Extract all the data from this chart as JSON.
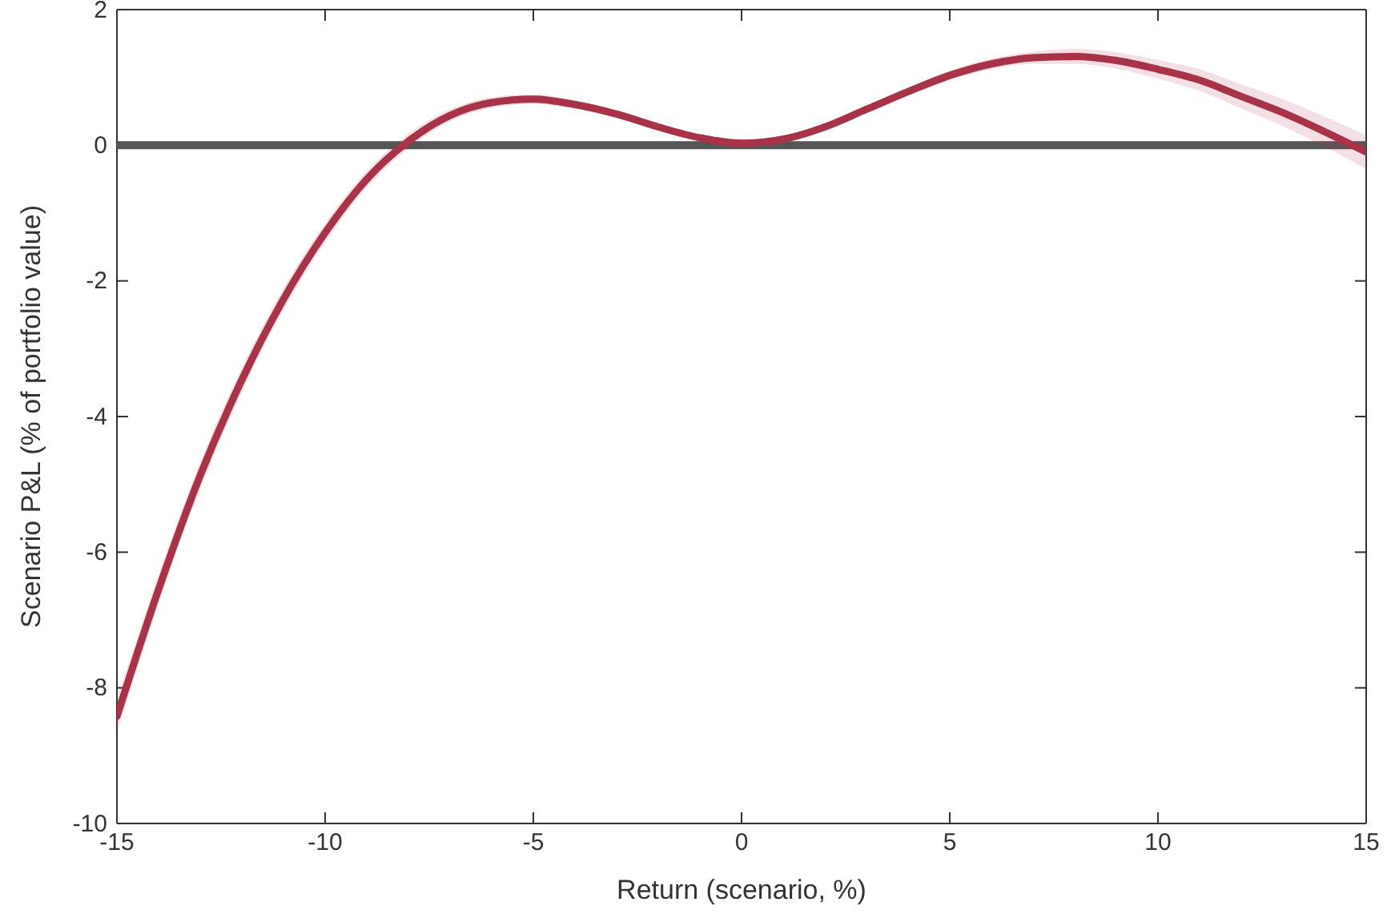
{
  "chart_data": {
    "type": "line",
    "xlabel": "Return (scenario, %)",
    "ylabel": "Scenario P&L (% of portfolio value)",
    "x": [
      -15,
      -14,
      -13,
      -12,
      -11,
      -10,
      -9,
      -8,
      -7,
      -6,
      -5,
      -4,
      -3,
      -2,
      -1,
      0,
      1,
      2,
      3,
      4,
      5,
      6,
      7,
      8,
      9,
      10,
      11,
      12,
      13,
      14,
      15
    ],
    "series": [
      {
        "color": "#a83248",
        "values": [
          -8.42,
          -6.55,
          -4.87,
          -3.46,
          -2.27,
          -1.29,
          -0.5,
          0.06,
          0.44,
          0.63,
          0.68,
          0.6,
          0.46,
          0.27,
          0.11,
          0.03,
          0.09,
          0.27,
          0.53,
          0.79,
          1.03,
          1.2,
          1.29,
          1.31,
          1.25,
          1.12,
          0.96,
          0.72,
          0.48,
          0.2,
          -0.1
        ],
        "lower": [
          -8.67,
          -6.77,
          -5.07,
          -3.64,
          -2.43,
          -1.43,
          -0.62,
          -0.05,
          0.35,
          0.55,
          0.61,
          0.54,
          0.4,
          0.22,
          0.06,
          -0.02,
          0.04,
          0.22,
          0.47,
          0.73,
          0.96,
          1.12,
          1.2,
          1.2,
          1.13,
          0.98,
          0.8,
          0.54,
          0.28,
          -0.02,
          -0.35
        ],
        "upper": [
          -8.17,
          -6.33,
          -4.67,
          -3.28,
          -2.11,
          -1.15,
          -0.38,
          0.17,
          0.53,
          0.71,
          0.75,
          0.66,
          0.52,
          0.32,
          0.16,
          0.08,
          0.14,
          0.32,
          0.59,
          0.85,
          1.1,
          1.28,
          1.38,
          1.42,
          1.37,
          1.26,
          1.12,
          0.9,
          0.68,
          0.42,
          0.15
        ]
      }
    ],
    "xlim": [
      -15,
      15
    ],
    "xticks": [
      -15,
      -10,
      -5,
      0,
      5,
      10,
      15
    ],
    "ylim": [
      -10,
      2
    ],
    "yticks": [
      -10,
      -8,
      -6,
      -4,
      -2,
      0,
      2
    ],
    "ref_lines": [
      {
        "axis": "y",
        "value": 0,
        "color": "#555555"
      }
    ],
    "grid": false,
    "marker": "none",
    "line_style": "solid"
  }
}
